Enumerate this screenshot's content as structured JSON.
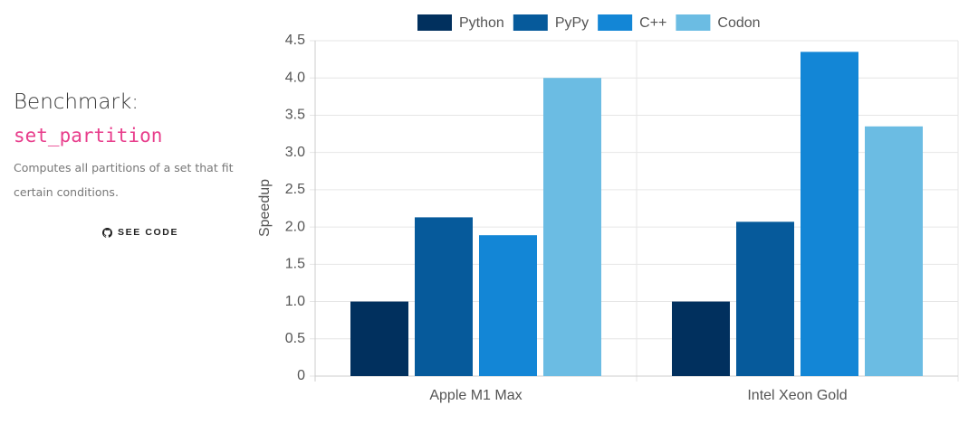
{
  "benchmark": {
    "heading": "Benchmark:",
    "name": "set_partition",
    "description": "Computes all partitions of a set that fit certain conditions.",
    "link": "SEE CODE"
  },
  "chart_data": {
    "type": "bar",
    "y_label": "Speedup",
    "categories": [
      "Apple M1 Max",
      "Intel Xeon Gold"
    ],
    "series": [
      {
        "name": "Python",
        "color": "#01305e",
        "values": [
          1.0,
          1.0
        ]
      },
      {
        "name": "PyPy",
        "color": "#065a9b",
        "values": [
          2.13,
          2.07
        ]
      },
      {
        "name": "C++",
        "color": "#1386d6",
        "values": [
          1.89,
          4.35
        ]
      },
      {
        "name": "Codon",
        "color": "#6bbce3",
        "values": [
          4.0,
          3.35
        ]
      }
    ],
    "ylim": [
      0,
      4.5
    ],
    "yticks": [
      0,
      0.5,
      {
        "value": 1,
        "label": "1.0"
      },
      1.5,
      {
        "value": 2,
        "label": "2.0"
      },
      2.5,
      {
        "value": 3,
        "label": "3.0"
      },
      3.5,
      {
        "value": 4,
        "label": "4.0"
      },
      4.5
    ],
    "grid": true,
    "legend": "top"
  }
}
